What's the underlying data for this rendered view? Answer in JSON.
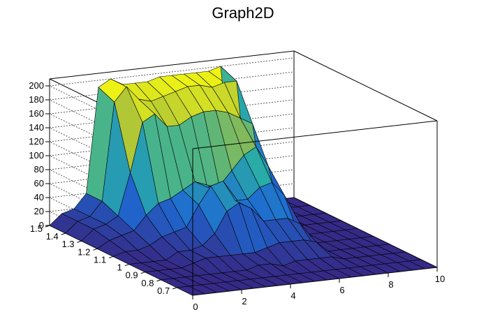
{
  "chart_data": {
    "type": "surface",
    "title": "Graph2D",
    "xlabel": "",
    "ylabel": "",
    "zlabel": "",
    "xlim": [
      0,
      10
    ],
    "ylim": [
      0.6,
      1.5
    ],
    "zlim": [
      0,
      210
    ],
    "x_ticks": [
      "0",
      "2",
      "4",
      "6",
      "8",
      "10"
    ],
    "y_ticks": [
      "0.7",
      "0.8",
      "0.9",
      "1",
      "1.1",
      "1.2",
      "1.3",
      "1.4",
      "1.5"
    ],
    "z_ticks": [
      "0",
      "20",
      "40",
      "60",
      "80",
      "100",
      "120",
      "140",
      "160",
      "180",
      "200"
    ],
    "grid": true,
    "colormap": "viridis",
    "colors": {
      "low": "#352a87",
      "mid": "#21a6a0",
      "high": "#f9fb0e",
      "frame": "#000000"
    },
    "grid_x": [
      0,
      0.5,
      1,
      1.5,
      2,
      2.5,
      3,
      3.5,
      4,
      4.5,
      5,
      5.5,
      6,
      6.5,
      7,
      7.5,
      8,
      8.5,
      9,
      9.5,
      10
    ],
    "grid_y": [
      0.6,
      0.7,
      0.8,
      0.9,
      1.0,
      1.1,
      1.2,
      1.3,
      1.4,
      1.5
    ],
    "z_values": [
      [
        0,
        0,
        0,
        0,
        0,
        0,
        0,
        0,
        0,
        0,
        0,
        0,
        0,
        0,
        0,
        0,
        0,
        0,
        0,
        0,
        0
      ],
      [
        0,
        0,
        0,
        0,
        0,
        0,
        0,
        0,
        0,
        0,
        0,
        0,
        0,
        0,
        0,
        0,
        0,
        0,
        0,
        0,
        0
      ],
      [
        0,
        0,
        0,
        0,
        0,
        0,
        0,
        0,
        5,
        5,
        0,
        5,
        5,
        5,
        5,
        0,
        0,
        0,
        0,
        0,
        0
      ],
      [
        0,
        0,
        0,
        0,
        5,
        10,
        10,
        10,
        10,
        10,
        15,
        20,
        20,
        20,
        15,
        0,
        0,
        0,
        0,
        0,
        0
      ],
      [
        0,
        0,
        0,
        0,
        10,
        10,
        15,
        30,
        60,
        70,
        60,
        40,
        40,
        40,
        30,
        0,
        0,
        0,
        0,
        0,
        0
      ],
      [
        0,
        5,
        5,
        10,
        20,
        25,
        30,
        60,
        85,
        90,
        60,
        60,
        75,
        80,
        60,
        10,
        0,
        0,
        0,
        0,
        0
      ],
      [
        0,
        10,
        15,
        20,
        40,
        55,
        60,
        70,
        80,
        70,
        70,
        90,
        110,
        120,
        90,
        15,
        0,
        0,
        0,
        0,
        0
      ],
      [
        0,
        15,
        20,
        30,
        90,
        160,
        170,
        150,
        150,
        160,
        165,
        165,
        160,
        150,
        140,
        20,
        0,
        0,
        0,
        0,
        0
      ],
      [
        0,
        15,
        20,
        40,
        180,
        200,
        180,
        175,
        180,
        185,
        190,
        190,
        185,
        190,
        190,
        20,
        0,
        0,
        0,
        0,
        0
      ],
      [
        0,
        15,
        20,
        40,
        190,
        200,
        190,
        190,
        190,
        195,
        195,
        195,
        195,
        195,
        200,
        20,
        0,
        0,
        0,
        0,
        0
      ]
    ]
  }
}
